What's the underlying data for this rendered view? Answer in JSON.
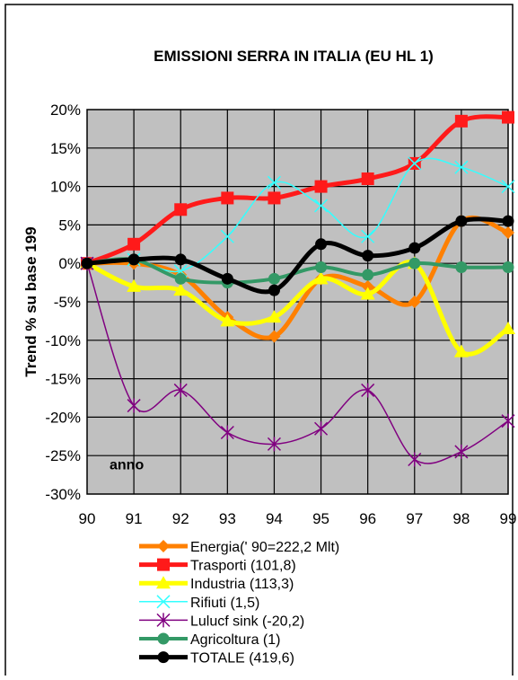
{
  "chart_data": {
    "type": "line",
    "title": "EMISSIONI SERRA IN ITALIA (EU HL 1)",
    "ylabel": "Trend % su base 199",
    "annotation": "anno",
    "x": [
      "90",
      "91",
      "92",
      "93",
      "94",
      "95",
      "96",
      "97",
      "98",
      "99"
    ],
    "yticks": [
      "20%",
      "15%",
      "10%",
      "5%",
      "0%",
      "-5%",
      "-10%",
      "-15%",
      "-20%",
      "-25%",
      "-30%"
    ],
    "ylim": [
      -30,
      20
    ],
    "grid": true,
    "plot_background": "#c0c0c0",
    "legend_position": "bottom",
    "series": [
      {
        "name": "Energia(' 90=222,2 Mlt)",
        "color": "#ff8000",
        "marker": "diamond",
        "width": 5,
        "values": [
          0,
          0,
          -1.5,
          -7,
          -9.5,
          -2,
          -3,
          -5,
          5.5,
          4
        ]
      },
      {
        "name": "Trasporti (101,8)",
        "color": "#ff1a1a",
        "marker": "square",
        "width": 5,
        "values": [
          0,
          2.5,
          7,
          8.5,
          8.5,
          10,
          11,
          13,
          18.5,
          19
        ]
      },
      {
        "name": "Industria (113,3)",
        "color": "#ffff00",
        "marker": "triangle",
        "width": 5,
        "values": [
          0,
          -3,
          -3.5,
          -7.5,
          -7,
          -2,
          -4,
          0,
          -11.5,
          -8.5
        ]
      },
      {
        "name": "Rifiuti (1,5)",
        "color": "#33ffff",
        "marker": "x",
        "width": 1.5,
        "values": [
          0,
          0.5,
          -1,
          3.5,
          10.5,
          7.5,
          3.5,
          13,
          12.5,
          10
        ]
      },
      {
        "name": "Lulucf sink (-20,2)",
        "color": "#800080",
        "marker": "asterisk",
        "width": 1.5,
        "values": [
          0,
          -18.5,
          -16.5,
          -22,
          -23.5,
          -21.5,
          -16.5,
          -25.5,
          -24.5,
          -20.5
        ]
      },
      {
        "name": "Agricoltura (1)",
        "color": "#339966",
        "marker": "circle",
        "width": 4,
        "values": [
          0,
          0.5,
          -2,
          -2.5,
          -2,
          -0.5,
          -1.5,
          0,
          -0.5,
          -0.5
        ]
      },
      {
        "name": "TOTALE (419,6)",
        "color": "#000000",
        "marker": "circle",
        "width": 5,
        "values": [
          0,
          0.5,
          0.5,
          -2,
          -3.5,
          2.5,
          1,
          2,
          5.5,
          5.5
        ]
      }
    ]
  }
}
